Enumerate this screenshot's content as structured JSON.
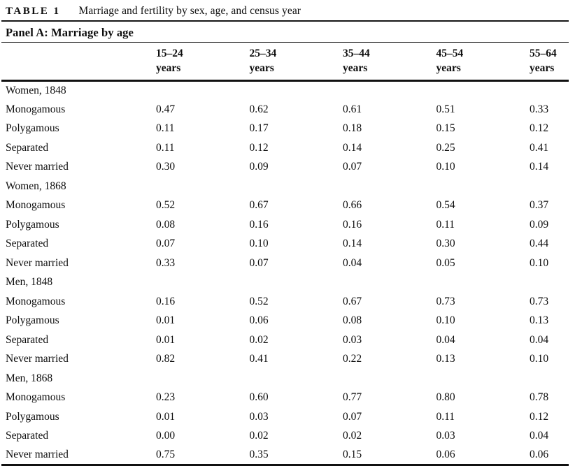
{
  "header": {
    "table_label": "TABLE 1",
    "table_title": "Marriage and fertility by sex, age, and census year",
    "panel_title": "Panel A: Marriage by age"
  },
  "table": {
    "columns": [
      {
        "range": "15–24",
        "unit": "years"
      },
      {
        "range": "25–34",
        "unit": "years"
      },
      {
        "range": "35–44",
        "unit": "years"
      },
      {
        "range": "45–54",
        "unit": "years"
      },
      {
        "range": "55–64",
        "unit": "years"
      }
    ],
    "groups": [
      {
        "label": "Women, 1848",
        "rows": [
          {
            "label": "Monogamous",
            "values": [
              "0.47",
              "0.62",
              "0.61",
              "0.51",
              "0.33"
            ]
          },
          {
            "label": "Polygamous",
            "values": [
              "0.11",
              "0.17",
              "0.18",
              "0.15",
              "0.12"
            ]
          },
          {
            "label": "Separated",
            "values": [
              "0.11",
              "0.12",
              "0.14",
              "0.25",
              "0.41"
            ]
          },
          {
            "label": "Never married",
            "values": [
              "0.30",
              "0.09",
              "0.07",
              "0.10",
              "0.14"
            ]
          }
        ]
      },
      {
        "label": "Women, 1868",
        "rows": [
          {
            "label": "Monogamous",
            "values": [
              "0.52",
              "0.67",
              "0.66",
              "0.54",
              "0.37"
            ]
          },
          {
            "label": "Polygamous",
            "values": [
              "0.08",
              "0.16",
              "0.16",
              "0.11",
              "0.09"
            ]
          },
          {
            "label": "Separated",
            "values": [
              "0.07",
              "0.10",
              "0.14",
              "0.30",
              "0.44"
            ]
          },
          {
            "label": "Never married",
            "values": [
              "0.33",
              "0.07",
              "0.04",
              "0.05",
              "0.10"
            ]
          }
        ]
      },
      {
        "label": "Men, 1848",
        "rows": [
          {
            "label": "Monogamous",
            "values": [
              "0.16",
              "0.52",
              "0.67",
              "0.73",
              "0.73"
            ]
          },
          {
            "label": "Polygamous",
            "values": [
              "0.01",
              "0.06",
              "0.08",
              "0.10",
              "0.13"
            ]
          },
          {
            "label": "Separated",
            "values": [
              "0.01",
              "0.02",
              "0.03",
              "0.04",
              "0.04"
            ]
          },
          {
            "label": "Never married",
            "values": [
              "0.82",
              "0.41",
              "0.22",
              "0.13",
              "0.10"
            ]
          }
        ]
      },
      {
        "label": "Men, 1868",
        "rows": [
          {
            "label": "Monogamous",
            "values": [
              "0.23",
              "0.60",
              "0.77",
              "0.80",
              "0.78"
            ]
          },
          {
            "label": "Polygamous",
            "values": [
              "0.01",
              "0.03",
              "0.07",
              "0.11",
              "0.12"
            ]
          },
          {
            "label": "Separated",
            "values": [
              "0.00",
              "0.02",
              "0.02",
              "0.03",
              "0.04"
            ]
          },
          {
            "label": "Never married",
            "values": [
              "0.75",
              "0.35",
              "0.15",
              "0.06",
              "0.06"
            ]
          }
        ]
      }
    ]
  },
  "colors": {
    "background": "#ffffff",
    "text": "#0e0e0e",
    "rule": "#161616"
  }
}
